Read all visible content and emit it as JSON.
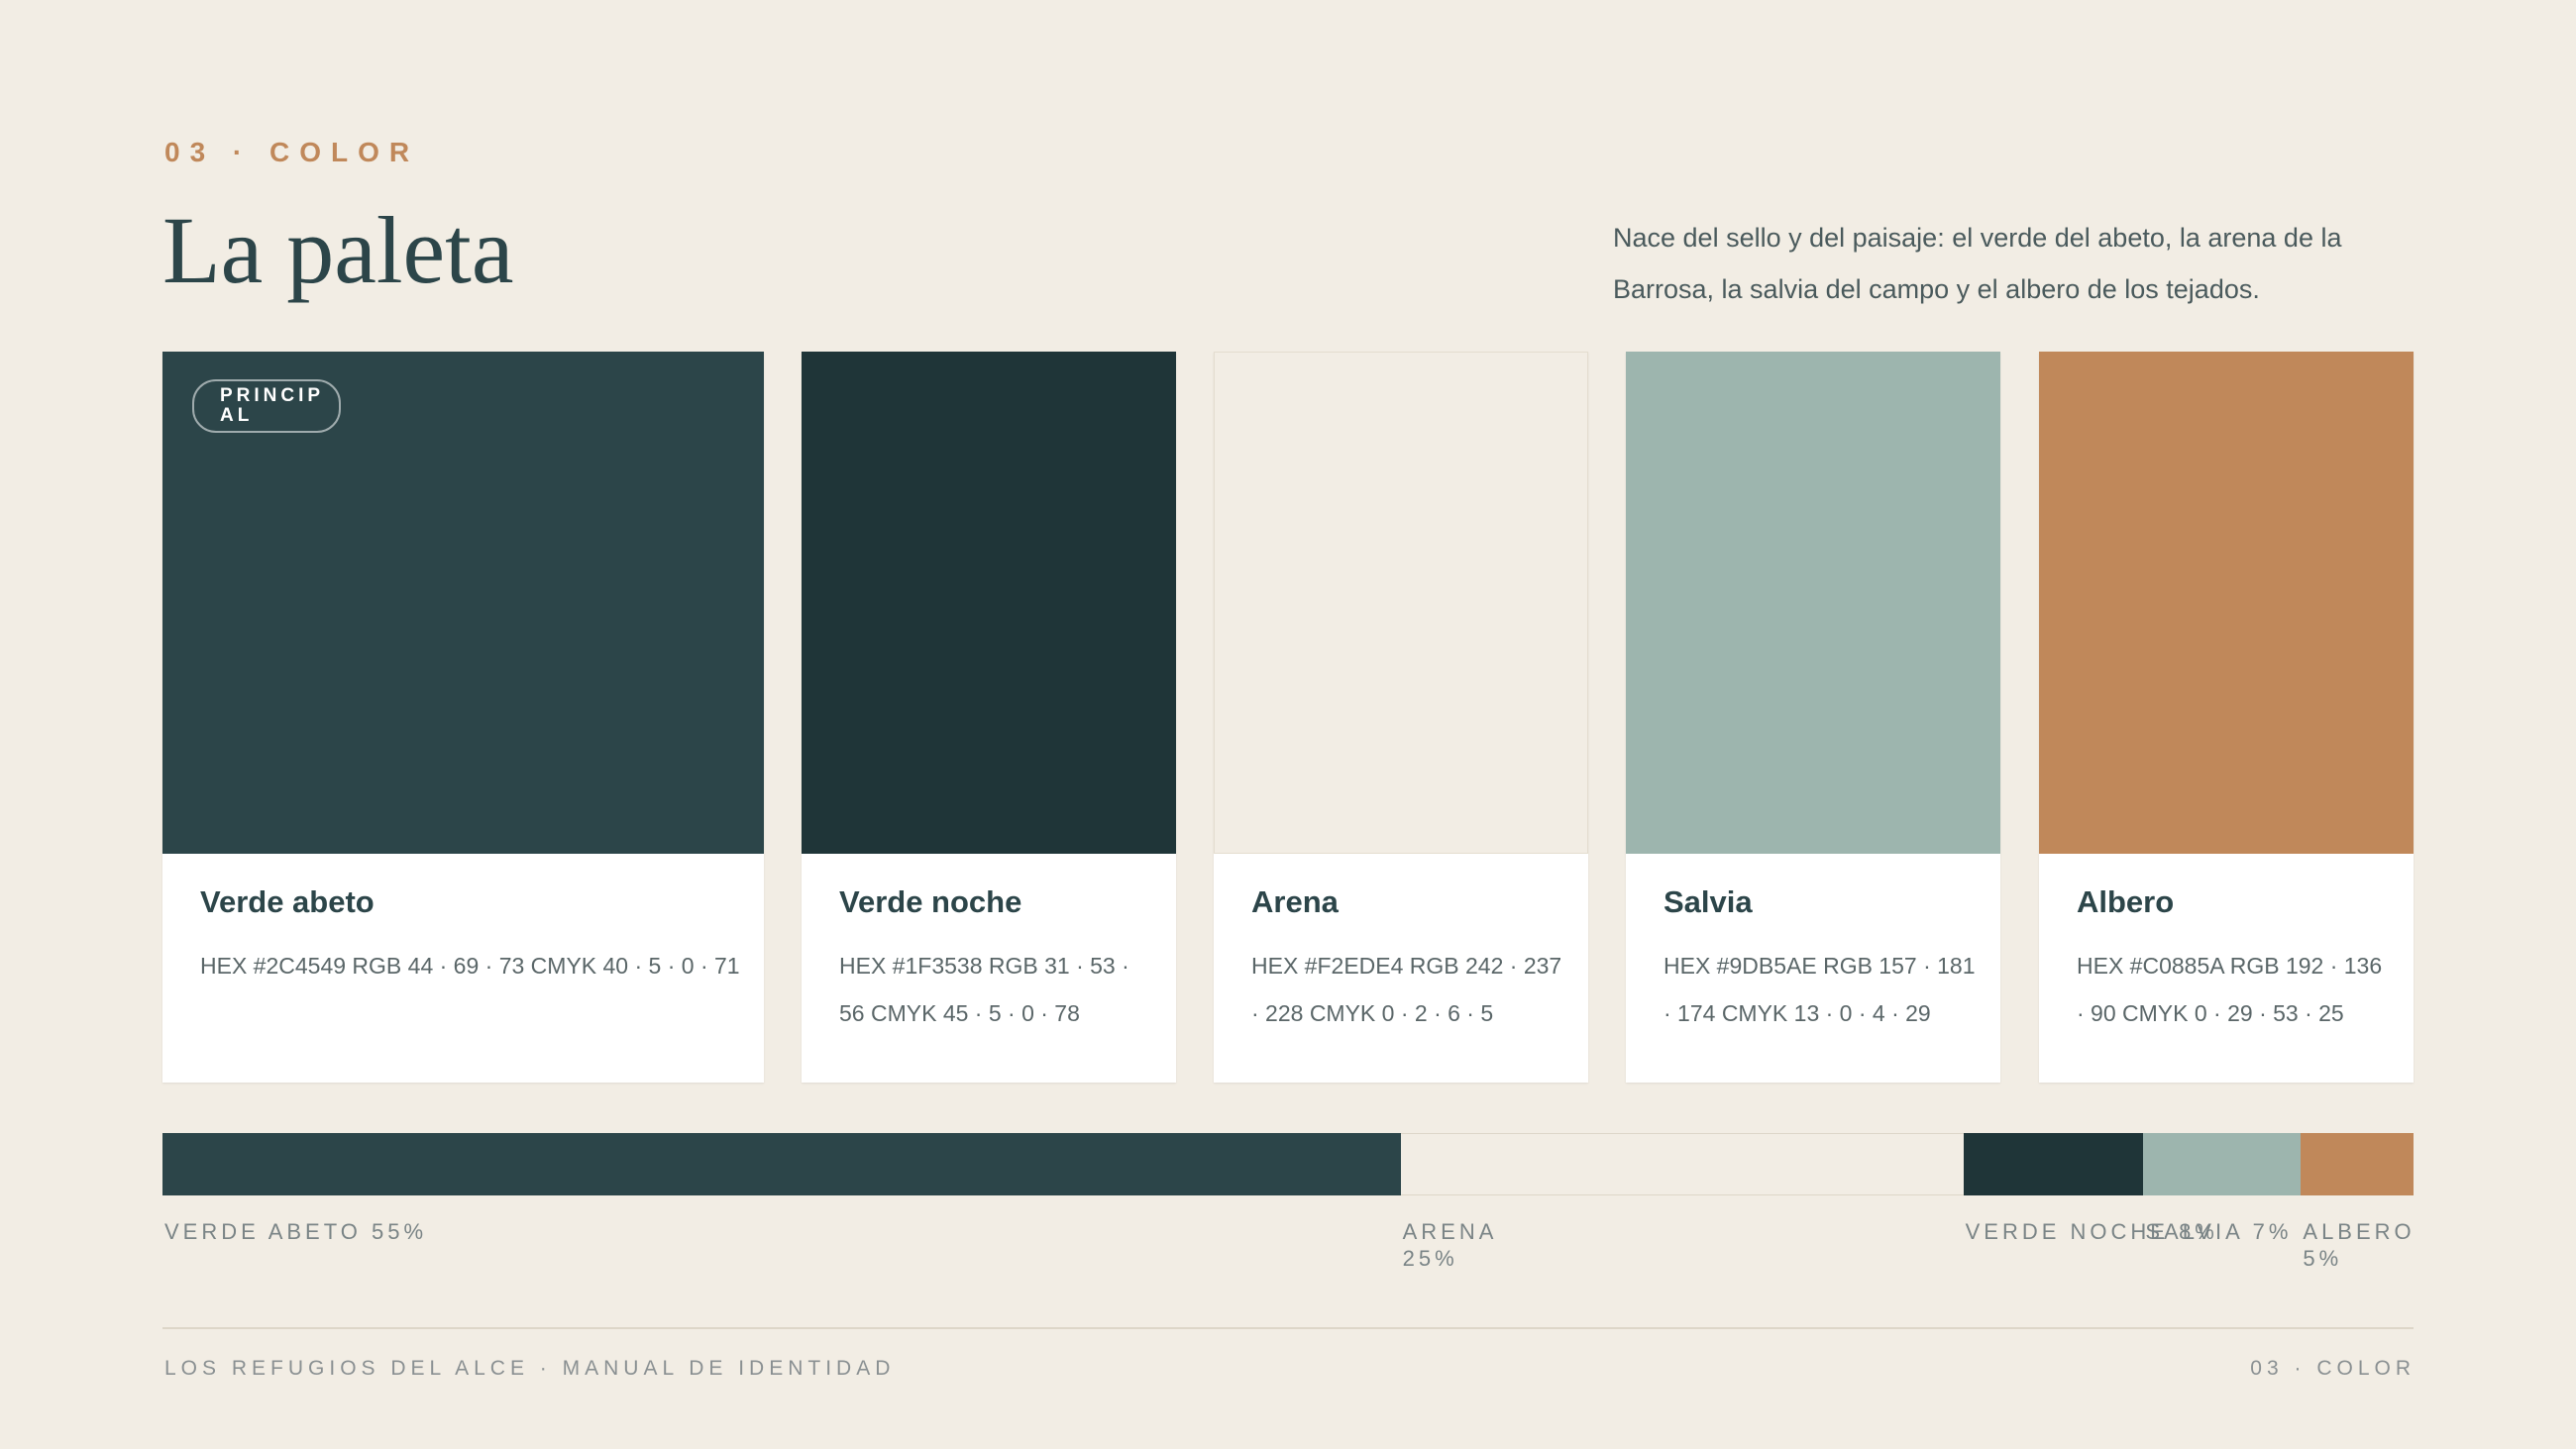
{
  "header": {
    "eyebrow": "03 · COLOR",
    "title": "La paleta",
    "intro": "Nace del sello y del paisaje: el verde del abeto, la arena de la Barrosa, la salvia del campo y el albero de los tejados."
  },
  "cards": [
    {
      "name": "Verde abeto",
      "color": "#2C4549",
      "badge": "PRINCIPAL",
      "specs": "HEX #2C4549 RGB 44 · 69 · 73 CMYK 40 · 5 · 0 · 71"
    },
    {
      "name": "Verde noche",
      "color": "#1F3538",
      "specs": "HEX #1F3538 RGB 31 · 53 · 56 CMYK 45 · 5 · 0 · 78"
    },
    {
      "name": "Arena",
      "color": "#F2EDE4",
      "specs": "HEX #F2EDE4 RGB 242 · 237 · 228 CMYK 0 · 2 · 6 · 5"
    },
    {
      "name": "Salvia",
      "color": "#9DB5AE",
      "specs": "HEX #9DB5AE RGB 157 · 181 · 174 CMYK 13 · 0 · 4 · 29"
    },
    {
      "name": "Albero",
      "color": "#C0885A",
      "specs": "HEX #C0885A RGB 192 · 136 · 90 CMYK 0 · 29 · 53 · 25"
    }
  ],
  "proportion": {
    "segments": [
      {
        "label": "VERDE ABETO 55%",
        "share": 55,
        "color": "#2C4549"
      },
      {
        "label": "ARENA 25%",
        "share": 25,
        "color": "#F2EDE4"
      },
      {
        "label": "VERDE NOCHE 8%",
        "share": 8,
        "color": "#1F3538"
      },
      {
        "label": "SALVIA 7%",
        "share": 7,
        "color": "#9DB5AE"
      },
      {
        "label": "ALBERO 5%",
        "share": 5,
        "color": "#C0885A"
      }
    ]
  },
  "footer": {
    "left": "LOS REFUGIOS DEL ALCE · MANUAL DE IDENTIDAD",
    "right": "03 · COLOR"
  }
}
